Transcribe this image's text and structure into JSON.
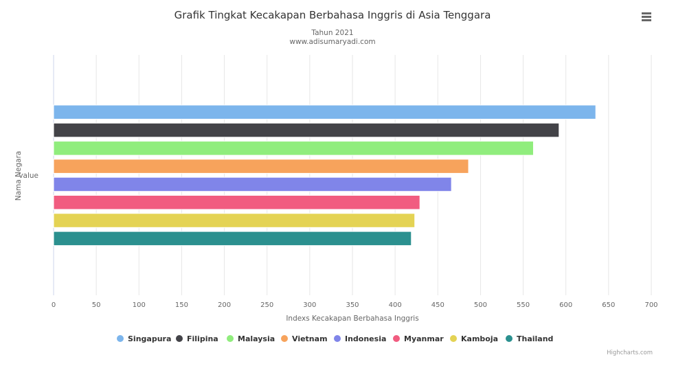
{
  "chart_data": {
    "type": "bar",
    "orientation": "horizontal",
    "title": "Grafik Tingkat Kecakapan Berbahasa Inggris di Asia Tenggara",
    "subtitle": [
      "Tahun 2021",
      "www.adisumaryadi.com"
    ],
    "xlabel": "Indexs Kecakapan Berbahasa Inggris",
    "ylabel": "Nama Negara",
    "category": "value",
    "xlim": [
      0,
      700
    ],
    "xticks": [
      0,
      50,
      100,
      150,
      200,
      250,
      300,
      350,
      400,
      450,
      500,
      550,
      600,
      650,
      700
    ],
    "grid": true,
    "legend_position": "bottom-center",
    "series": [
      {
        "name": "Singapura",
        "value": 635,
        "color": "#7cb5ec"
      },
      {
        "name": "Filipina",
        "value": 592,
        "color": "#434348"
      },
      {
        "name": "Malaysia",
        "value": 562,
        "color": "#90ed7d"
      },
      {
        "name": "Vietnam",
        "value": 486,
        "color": "#f7a35c"
      },
      {
        "name": "Indonesia",
        "value": 466,
        "color": "#8085e9"
      },
      {
        "name": "Myanmar",
        "value": 429,
        "color": "#f15c80"
      },
      {
        "name": "Kamboja",
        "value": 423,
        "color": "#e4d354"
      },
      {
        "name": "Thailand",
        "value": 419,
        "color": "#2b908f"
      }
    ]
  },
  "credits": "Highcharts.com",
  "menu_icon": "hamburger-menu-icon"
}
